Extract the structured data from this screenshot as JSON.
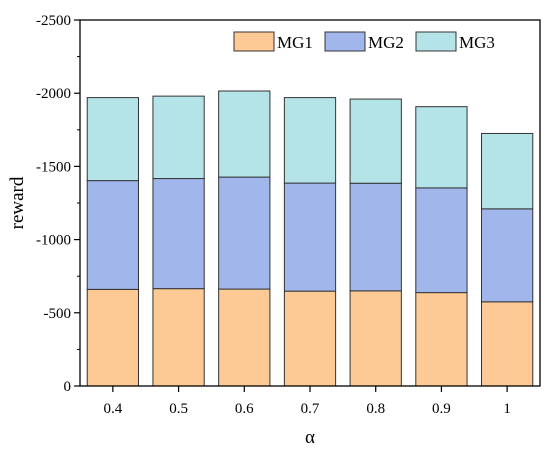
{
  "chart_data": {
    "type": "bar",
    "stacked": true,
    "categories": [
      "0.4",
      "0.5",
      "0.6",
      "0.7",
      "0.8",
      "0.9",
      "1"
    ],
    "series": [
      {
        "name": "MG1",
        "color": "#FDC995",
        "values": [
          -660,
          -665,
          -662,
          -648,
          -650,
          -638,
          -575
        ]
      },
      {
        "name": "MG2",
        "color": "#A1B7EC",
        "values": [
          -743,
          -752,
          -765,
          -738,
          -735,
          -715,
          -635
        ]
      },
      {
        "name": "MG3",
        "color": "#B4E4E8",
        "values": [
          -567,
          -563,
          -588,
          -584,
          -575,
          -555,
          -515
        ]
      }
    ],
    "xlabel": "α",
    "ylabel": "reward",
    "ylim": [
      0,
      -2500
    ],
    "yticks": [
      "0",
      "-500",
      "-1000",
      "-1500",
      "-2000",
      "-2500"
    ],
    "grid": false,
    "legend_position": "top-right",
    "legend_orientation": "horizontal"
  }
}
